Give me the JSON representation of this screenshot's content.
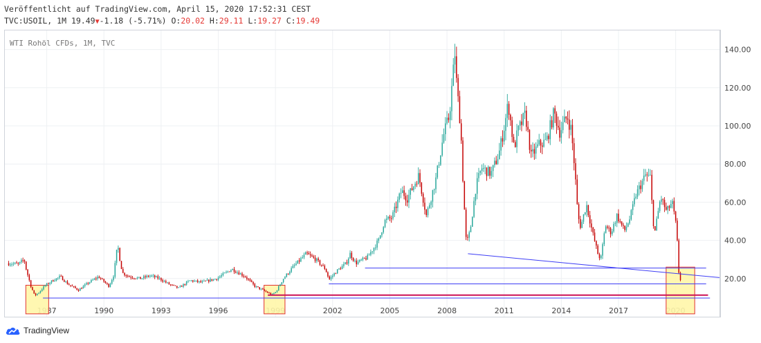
{
  "header": {
    "line1": "Veröffentlicht auf TradingView.com, April 15, 2020 17:52:31 CEST",
    "symbol": "TVC:USOIL, 1M",
    "last": "19.49",
    "change": "-1.18 (-5.71%)",
    "o_label": "O:",
    "o_value": "20.02",
    "h_label": "H:",
    "h_value": "29.11",
    "l_label": "L:",
    "l_value": "19.27",
    "c_label": "C:",
    "c_value": "19.49"
  },
  "legend": "WTI Rohöl CFDs, 1M, TVC",
  "footer": {
    "brand": "TradingView"
  },
  "colors": {
    "up": "#26a69a",
    "down": "#c40000",
    "trend": "#3d3df5",
    "horizontal": "#cc1155",
    "highlight_fill": "#fff6a8",
    "highlight_border": "#e03030"
  },
  "chart_data": {
    "type": "candlestick",
    "title": "WTI Rohöl CFDs, 1M, TVC",
    "x_ticks": [
      "1987",
      "1990",
      "1993",
      "1996",
      "1999",
      "2002",
      "2005",
      "2008",
      "2011",
      "2014",
      "2017",
      "2020"
    ],
    "y_ticks": [
      "20.00",
      "40.00",
      "60.00",
      "80.00",
      "100.00",
      "120.00",
      "140.00"
    ],
    "xlim": [
      1984.8,
      2022.3
    ],
    "ylim": [
      0,
      150
    ],
    "grid": true,
    "price_path": [
      [
        1985.0,
        28
      ],
      [
        1985.6,
        27.5
      ],
      [
        1985.9,
        30
      ],
      [
        1986.0,
        25
      ],
      [
        1986.25,
        16
      ],
      [
        1986.45,
        11
      ],
      [
        1986.7,
        13
      ],
      [
        1986.95,
        16
      ],
      [
        1987.4,
        19
      ],
      [
        1987.8,
        21
      ],
      [
        1988.2,
        17
      ],
      [
        1988.75,
        14
      ],
      [
        1989.3,
        18
      ],
      [
        1989.8,
        21
      ],
      [
        1990.35,
        16
      ],
      [
        1990.6,
        22
      ],
      [
        1990.8,
        38
      ],
      [
        1990.92,
        30
      ],
      [
        1991.05,
        23
      ],
      [
        1991.4,
        21
      ],
      [
        1992.0,
        20
      ],
      [
        1992.5,
        21.5
      ],
      [
        1993.0,
        20
      ],
      [
        1993.5,
        17
      ],
      [
        1994.0,
        15
      ],
      [
        1994.6,
        19
      ],
      [
        1995.2,
        18
      ],
      [
        1996.0,
        20
      ],
      [
        1996.8,
        25
      ],
      [
        1997.5,
        21
      ],
      [
        1998.0,
        16
      ],
      [
        1998.4,
        14
      ],
      [
        1998.9,
        11.5
      ],
      [
        1999.1,
        13
      ],
      [
        1999.5,
        20
      ],
      [
        2000.0,
        26
      ],
      [
        2000.7,
        33
      ],
      [
        2001.2,
        30
      ],
      [
        2001.7,
        25
      ],
      [
        2001.9,
        19.5
      ],
      [
        2002.3,
        24
      ],
      [
        2002.8,
        28
      ],
      [
        2003.0,
        33
      ],
      [
        2003.3,
        28
      ],
      [
        2003.9,
        31
      ],
      [
        2004.5,
        40
      ],
      [
        2004.8,
        50
      ],
      [
        2005.2,
        52
      ],
      [
        2005.7,
        66
      ],
      [
        2006.0,
        62
      ],
      [
        2006.6,
        74
      ],
      [
        2007.0,
        53
      ],
      [
        2007.5,
        72
      ],
      [
        2007.9,
        95
      ],
      [
        2008.2,
        105
      ],
      [
        2008.5,
        138
      ],
      [
        2008.6,
        120
      ],
      [
        2008.8,
        100
      ],
      [
        2008.95,
        65
      ],
      [
        2009.1,
        38
      ],
      [
        2009.3,
        45
      ],
      [
        2009.6,
        68
      ],
      [
        2009.9,
        78
      ],
      [
        2010.4,
        75
      ],
      [
        2010.8,
        85
      ],
      [
        2011.1,
        100
      ],
      [
        2011.3,
        112
      ],
      [
        2011.6,
        88
      ],
      [
        2011.8,
        97
      ],
      [
        2012.2,
        106
      ],
      [
        2012.5,
        84
      ],
      [
        2012.9,
        90
      ],
      [
        2013.3,
        92
      ],
      [
        2013.7,
        107
      ],
      [
        2014.0,
        97
      ],
      [
        2014.4,
        105
      ],
      [
        2014.6,
        98
      ],
      [
        2014.8,
        76
      ],
      [
        2014.95,
        53
      ],
      [
        2015.1,
        47
      ],
      [
        2015.4,
        59
      ],
      [
        2015.7,
        45
      ],
      [
        2016.0,
        33
      ],
      [
        2016.15,
        30
      ],
      [
        2016.4,
        48
      ],
      [
        2016.7,
        44
      ],
      [
        2017.0,
        53
      ],
      [
        2017.4,
        45
      ],
      [
        2017.7,
        52
      ],
      [
        2018.0,
        64
      ],
      [
        2018.5,
        74
      ],
      [
        2018.75,
        73
      ],
      [
        2018.9,
        50
      ],
      [
        2019.0,
        45
      ],
      [
        2019.3,
        63
      ],
      [
        2019.6,
        55
      ],
      [
        2019.9,
        60
      ],
      [
        2020.05,
        51
      ],
      [
        2020.15,
        45
      ],
      [
        2020.2,
        27
      ],
      [
        2020.3,
        19.5
      ]
    ],
    "annotations": {
      "trend_line": {
        "from": [
          2009.1,
          33
        ],
        "to": [
          2022.3,
          20.5
        ]
      },
      "support_lines": [
        {
          "from": [
            2003.7,
            25.5
          ],
          "to": [
            2021.6,
            25.5
          ]
        },
        {
          "from": [
            2001.8,
            17.2
          ],
          "to": [
            2021.6,
            17.2
          ]
        },
        {
          "from": [
            1998.6,
            11.3
          ],
          "to": [
            2021.7,
            11.3
          ]
        },
        {
          "from": [
            1986.8,
            9.8
          ],
          "to": [
            2021.8,
            9.8
          ]
        }
      ],
      "highlight_boxes": [
        {
          "x": [
            1985.9,
            1987.1
          ],
          "y": [
            1.5,
            16.5
          ]
        },
        {
          "x": [
            1998.4,
            1999.5
          ],
          "y": [
            1.5,
            16.5
          ]
        },
        {
          "x": [
            2019.5,
            2021.0
          ],
          "y": [
            1.5,
            26
          ]
        }
      ]
    }
  }
}
